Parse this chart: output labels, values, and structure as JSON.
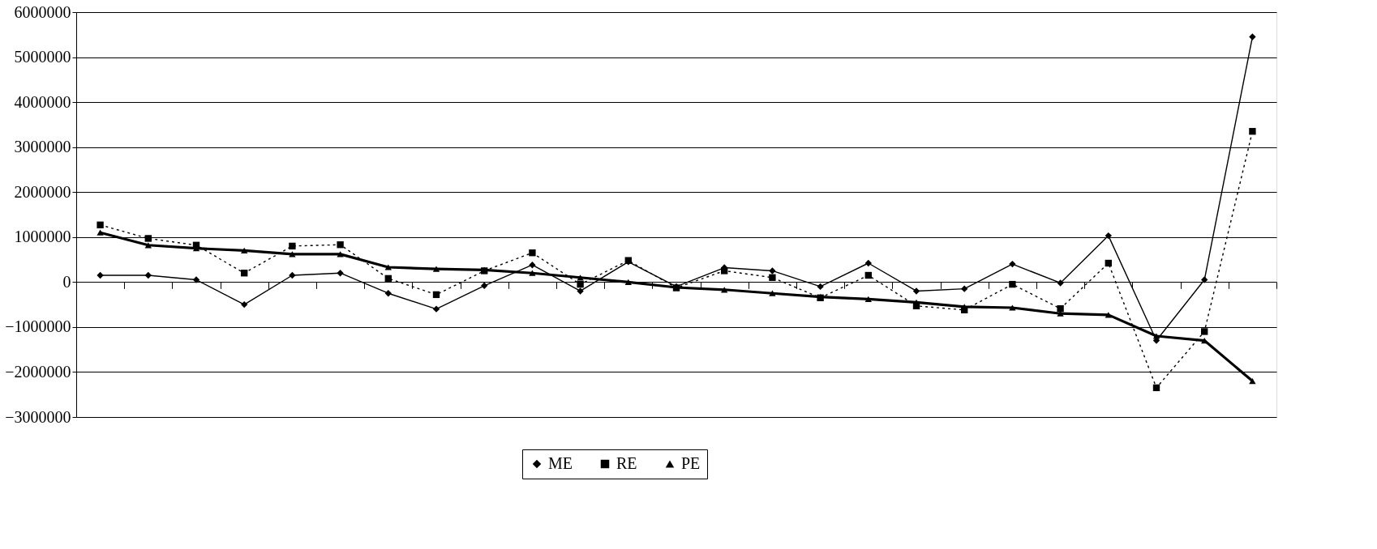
{
  "chart_data": {
    "type": "line",
    "categories": [
      null,
      null,
      null,
      null,
      null,
      null,
      null,
      null,
      null,
      null,
      null,
      null,
      null,
      null,
      null,
      null,
      null,
      null,
      null,
      null,
      null,
      null,
      null,
      null,
      null
    ],
    "series": [
      {
        "name": "ME",
        "color": "#000000",
        "marker": "diamond",
        "line_style": "solid",
        "values": [
          150000,
          150000,
          50000,
          -500000,
          150000,
          200000,
          -250000,
          -600000,
          -80000,
          380000,
          -200000,
          450000,
          -100000,
          320000,
          250000,
          -100000,
          420000,
          -200000,
          -150000,
          400000,
          -20000,
          1030000,
          -1300000,
          50000,
          5450000
        ]
      },
      {
        "name": "RE",
        "color": "#000000",
        "marker": "square",
        "line_style": "dotted",
        "values": [
          1270000,
          970000,
          820000,
          200000,
          800000,
          830000,
          80000,
          -280000,
          250000,
          650000,
          -50000,
          480000,
          -130000,
          250000,
          100000,
          -350000,
          150000,
          -530000,
          -620000,
          -50000,
          -590000,
          420000,
          -2350000,
          -1100000,
          3350000
        ]
      },
      {
        "name": "PE",
        "color": "#000000",
        "marker": "triangle",
        "line_style": "solid",
        "values": [
          1100000,
          820000,
          750000,
          700000,
          620000,
          620000,
          330000,
          290000,
          270000,
          200000,
          100000,
          0,
          -120000,
          -170000,
          -250000,
          -330000,
          -380000,
          -450000,
          -550000,
          -570000,
          -700000,
          -730000,
          -1200000,
          -1300000,
          -2200000
        ]
      }
    ],
    "ylim": [
      -3000000,
      6000000
    ],
    "yticks": [
      -3000000,
      -2000000,
      -1000000,
      0,
      1000000,
      2000000,
      3000000,
      4000000,
      5000000,
      6000000
    ],
    "grid": "y",
    "legend": "bottom",
    "tick_labels": "y"
  }
}
